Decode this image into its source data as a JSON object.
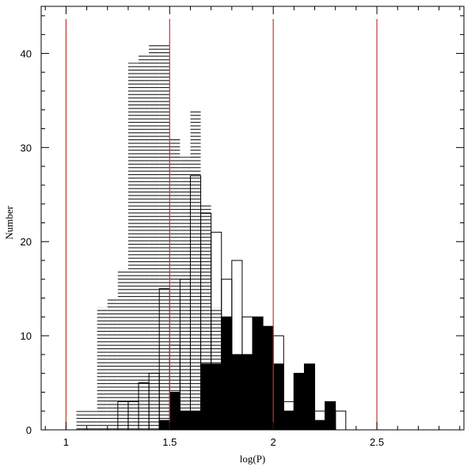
{
  "chart_data": {
    "type": "bar",
    "xlabel": "log(P)",
    "ylabel": "Number",
    "xlim": [
      0.88,
      2.92
    ],
    "ylim": [
      0,
      45
    ],
    "x_ticks": [
      1,
      1.5,
      2,
      2.5
    ],
    "x_tick_labels": [
      "1",
      "1.5",
      "2",
      "2.5"
    ],
    "y_ticks": [
      0,
      10,
      20,
      30,
      40
    ],
    "y_tick_labels": [
      "0",
      "10",
      "20",
      "30",
      "40"
    ],
    "bin_width": 0.05,
    "vertical_lines": [
      1,
      1.5,
      2,
      2.5
    ],
    "vertical_line_color": "#c0392b",
    "series": [
      {
        "style": "horizontal-hatch",
        "bins": [
          [
            1.05,
            2
          ],
          [
            1.1,
            2
          ],
          [
            1.15,
            13
          ],
          [
            1.2,
            14
          ],
          [
            1.25,
            17
          ],
          [
            1.3,
            39
          ],
          [
            1.35,
            40
          ],
          [
            1.4,
            41
          ],
          [
            1.45,
            41
          ],
          [
            1.5,
            31
          ],
          [
            1.55,
            29
          ],
          [
            1.6,
            34
          ],
          [
            1.65,
            24
          ],
          [
            1.7,
            13
          ],
          [
            1.75,
            7
          ],
          [
            1.8,
            7
          ],
          [
            1.85,
            7
          ]
        ]
      },
      {
        "style": "outline",
        "bins": [
          [
            1.25,
            3
          ],
          [
            1.3,
            3
          ],
          [
            1.35,
            5
          ],
          [
            1.4,
            6
          ],
          [
            1.45,
            15
          ],
          [
            1.5,
            9
          ],
          [
            1.55,
            16
          ],
          [
            1.6,
            27
          ],
          [
            1.65,
            23
          ],
          [
            1.7,
            21
          ],
          [
            1.75,
            16
          ],
          [
            1.8,
            18
          ],
          [
            1.85,
            12
          ],
          [
            1.9,
            10
          ],
          [
            1.95,
            10
          ],
          [
            2.0,
            10
          ],
          [
            2.05,
            3
          ],
          [
            2.1,
            6
          ],
          [
            2.15,
            2
          ],
          [
            2.2,
            2
          ],
          [
            2.25,
            2
          ],
          [
            2.3,
            2
          ]
        ]
      },
      {
        "style": "solid",
        "bins": [
          [
            1.45,
            1
          ],
          [
            1.5,
            4
          ],
          [
            1.55,
            2
          ],
          [
            1.6,
            2
          ],
          [
            1.65,
            7
          ],
          [
            1.7,
            7
          ],
          [
            1.75,
            12
          ],
          [
            1.8,
            8
          ],
          [
            1.85,
            8
          ],
          [
            1.9,
            12
          ],
          [
            1.95,
            11
          ],
          [
            2.0,
            7
          ],
          [
            2.05,
            2
          ],
          [
            2.1,
            6
          ],
          [
            2.15,
            7
          ],
          [
            2.2,
            1
          ],
          [
            2.25,
            3
          ]
        ]
      }
    ]
  }
}
